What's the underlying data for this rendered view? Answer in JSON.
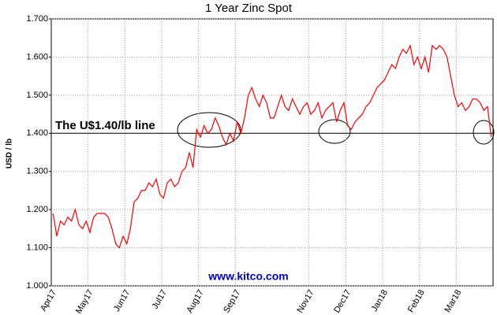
{
  "chart_data": {
    "type": "line",
    "title": "1 Year Zinc Spot",
    "y_label": "USD / lb",
    "annotation": "The U$1.40/lb line",
    "watermark": "www.kitco.com",
    "reference_line": 1.4,
    "grid": true,
    "ylim": [
      1.0,
      1.7
    ],
    "yticks": [
      {
        "value": 1.0,
        "label": "1.000"
      },
      {
        "value": 1.1,
        "label": "1.100"
      },
      {
        "value": 1.2,
        "label": "1.200"
      },
      {
        "value": 1.3,
        "label": "1.300"
      },
      {
        "value": 1.4,
        "label": "1.400"
      },
      {
        "value": 1.5,
        "label": "1.500"
      },
      {
        "value": 1.6,
        "label": "1.600"
      },
      {
        "value": 1.7,
        "label": "1.700"
      }
    ],
    "categories": [
      "Apr17",
      null,
      null,
      null,
      null,
      null,
      null,
      null,
      null,
      null,
      "May17",
      null,
      null,
      null,
      null,
      null,
      null,
      null,
      null,
      null,
      "Jun17",
      null,
      null,
      null,
      null,
      null,
      null,
      null,
      null,
      null,
      "Jul17",
      null,
      null,
      null,
      null,
      null,
      null,
      null,
      null,
      null,
      "Aug17",
      null,
      null,
      null,
      null,
      null,
      null,
      null,
      null,
      null,
      "Sep17",
      null,
      null,
      null,
      null,
      null,
      null,
      null,
      null,
      null,
      null,
      null,
      null,
      null,
      null,
      null,
      null,
      null,
      null,
      null,
      "Nov17",
      null,
      null,
      null,
      null,
      null,
      null,
      null,
      null,
      null,
      "Dec17",
      null,
      null,
      null,
      null,
      null,
      null,
      null,
      null,
      null,
      "Jan18",
      null,
      null,
      null,
      null,
      null,
      null,
      null,
      null,
      null,
      "Feb18",
      null,
      null,
      null,
      null,
      null,
      null,
      null,
      null,
      null,
      "Mar18",
      null,
      null,
      null,
      null,
      null,
      null,
      null,
      null,
      null
    ],
    "series": [
      {
        "name": "Zinc",
        "color": "#ff0000",
        "values": [
          1.19,
          1.13,
          1.17,
          1.16,
          1.18,
          1.17,
          1.2,
          1.16,
          1.15,
          1.17,
          1.14,
          1.18,
          1.19,
          1.19,
          1.19,
          1.18,
          1.15,
          1.11,
          1.1,
          1.13,
          1.11,
          1.15,
          1.22,
          1.23,
          1.25,
          1.25,
          1.27,
          1.26,
          1.28,
          1.24,
          1.23,
          1.27,
          1.28,
          1.26,
          1.27,
          1.3,
          1.31,
          1.35,
          1.31,
          1.41,
          1.39,
          1.42,
          1.4,
          1.41,
          1.44,
          1.42,
          1.39,
          1.37,
          1.4,
          1.38,
          1.43,
          1.4,
          1.44,
          1.5,
          1.52,
          1.49,
          1.47,
          1.5,
          1.48,
          1.44,
          1.44,
          1.47,
          1.5,
          1.47,
          1.46,
          1.49,
          1.47,
          1.45,
          1.47,
          1.48,
          1.45,
          1.46,
          1.48,
          1.44,
          1.46,
          1.47,
          1.48,
          1.43,
          1.46,
          1.48,
          1.42,
          1.41,
          1.43,
          1.44,
          1.45,
          1.47,
          1.48,
          1.5,
          1.52,
          1.53,
          1.54,
          1.56,
          1.58,
          1.57,
          1.6,
          1.62,
          1.61,
          1.63,
          1.58,
          1.6,
          1.57,
          1.6,
          1.56,
          1.63,
          1.62,
          1.63,
          1.62,
          1.6,
          1.55,
          1.5,
          1.47,
          1.48,
          1.46,
          1.47,
          1.49,
          1.49,
          1.48,
          1.46,
          1.47,
          1.39
        ]
      }
    ]
  }
}
